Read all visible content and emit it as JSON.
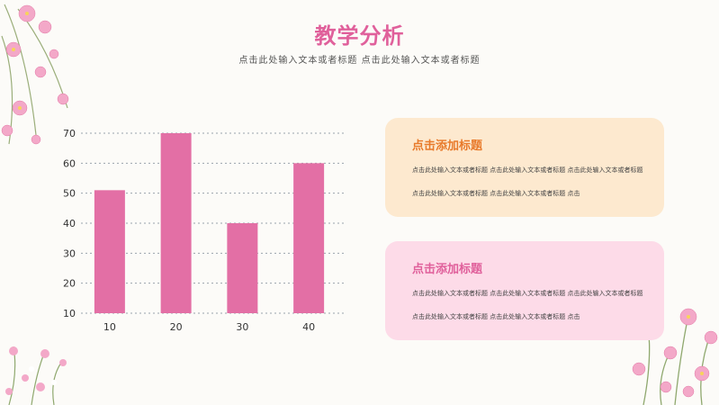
{
  "header": {
    "title": "教学分析",
    "subtitle": "点击此处输入文本或者标题 点击此处输入文本或者标题"
  },
  "chart_data": {
    "type": "bar",
    "categories": [
      "10",
      "20",
      "30",
      "40"
    ],
    "values": [
      51,
      70,
      40,
      60
    ],
    "yticks": [
      10,
      20,
      30,
      40,
      50,
      60,
      70
    ],
    "ylim": [
      10,
      70
    ],
    "grid": true,
    "bar_color": "#e36fa5",
    "title": "",
    "xlabel": "",
    "ylabel": ""
  },
  "cards": [
    {
      "heading": "点击添加标题",
      "body": "点击此处输入文本或者标题 点击此处输入文本或者标题 点击此处输入文本或者标题 点击此处输入文本或者标题 点击此处输入文本或者标题 点击",
      "bg": "#fde9cf",
      "accent": "#e87a2b"
    },
    {
      "heading": "点击添加标题",
      "body": "点击此处输入文本或者标题 点击此处输入文本或者标题 点击此处输入文本或者标题 点击此处输入文本或者标题 点击此处输入文本或者标题 点击",
      "bg": "#fddbe8",
      "accent": "#e0609b"
    }
  ],
  "decor": {
    "top_left": "flower-cluster-icon",
    "bottom_left": "flower-bush-icon",
    "bottom_right": "flower-bush-icon"
  }
}
